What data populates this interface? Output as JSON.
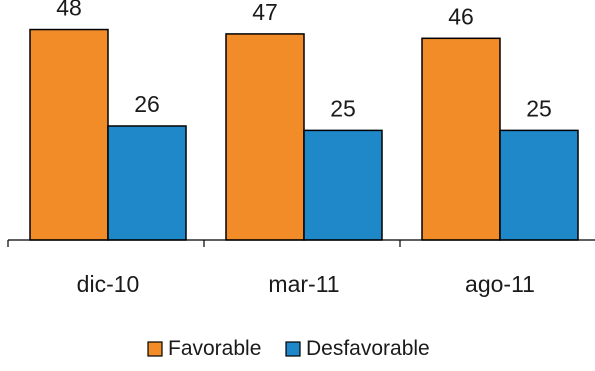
{
  "chart_data": {
    "type": "bar",
    "categories": [
      "dic-10",
      "mar-11",
      "ago-11"
    ],
    "series": [
      {
        "name": "Favorable",
        "values": [
          48,
          47,
          46
        ],
        "color": "#F28C28"
      },
      {
        "name": "Desfavorable",
        "values": [
          26,
          25,
          25
        ],
        "color": "#1E88C8"
      }
    ],
    "title": "",
    "xlabel": "",
    "ylabel": "",
    "ylim": [
      0,
      52
    ],
    "grid": false,
    "legend": "bottom",
    "data_labels": true
  }
}
